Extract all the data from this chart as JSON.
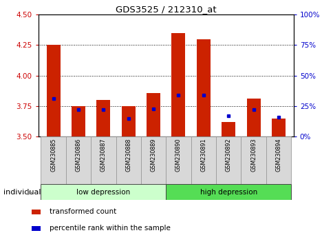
{
  "title": "GDS3525 / 212310_at",
  "samples": [
    "GSM230885",
    "GSM230886",
    "GSM230887",
    "GSM230888",
    "GSM230889",
    "GSM230890",
    "GSM230891",
    "GSM230892",
    "GSM230893",
    "GSM230894"
  ],
  "red_values": [
    4.25,
    3.75,
    3.8,
    3.75,
    3.86,
    4.35,
    4.3,
    3.62,
    3.81,
    3.65
  ],
  "blue_values": [
    3.81,
    3.72,
    3.72,
    3.65,
    3.73,
    3.84,
    3.84,
    3.67,
    3.72,
    3.66
  ],
  "base": 3.5,
  "ylim": [
    3.5,
    4.5
  ],
  "yticks_left": [
    3.5,
    3.75,
    4.0,
    4.25,
    4.5
  ],
  "yticks_right": [
    0,
    25,
    50,
    75,
    100
  ],
  "ylabel_left_color": "#cc0000",
  "ylabel_right_color": "#0000cc",
  "group1_label": "low depression",
  "group2_label": "high depression",
  "group1_indices": [
    0,
    1,
    2,
    3,
    4
  ],
  "group2_indices": [
    5,
    6,
    7,
    8,
    9
  ],
  "group1_color": "#ccffcc",
  "group2_color": "#55dd55",
  "bar_color": "#cc2200",
  "dot_color": "#0000cc",
  "xlabel_individual": "individual",
  "legend_items": [
    "transformed count",
    "percentile rank within the sample"
  ],
  "legend_colors": [
    "#cc2200",
    "#0000cc"
  ],
  "bar_width": 0.55,
  "tick_label_area_color": "#d8d8d8",
  "tick_label_border_color": "#999999"
}
